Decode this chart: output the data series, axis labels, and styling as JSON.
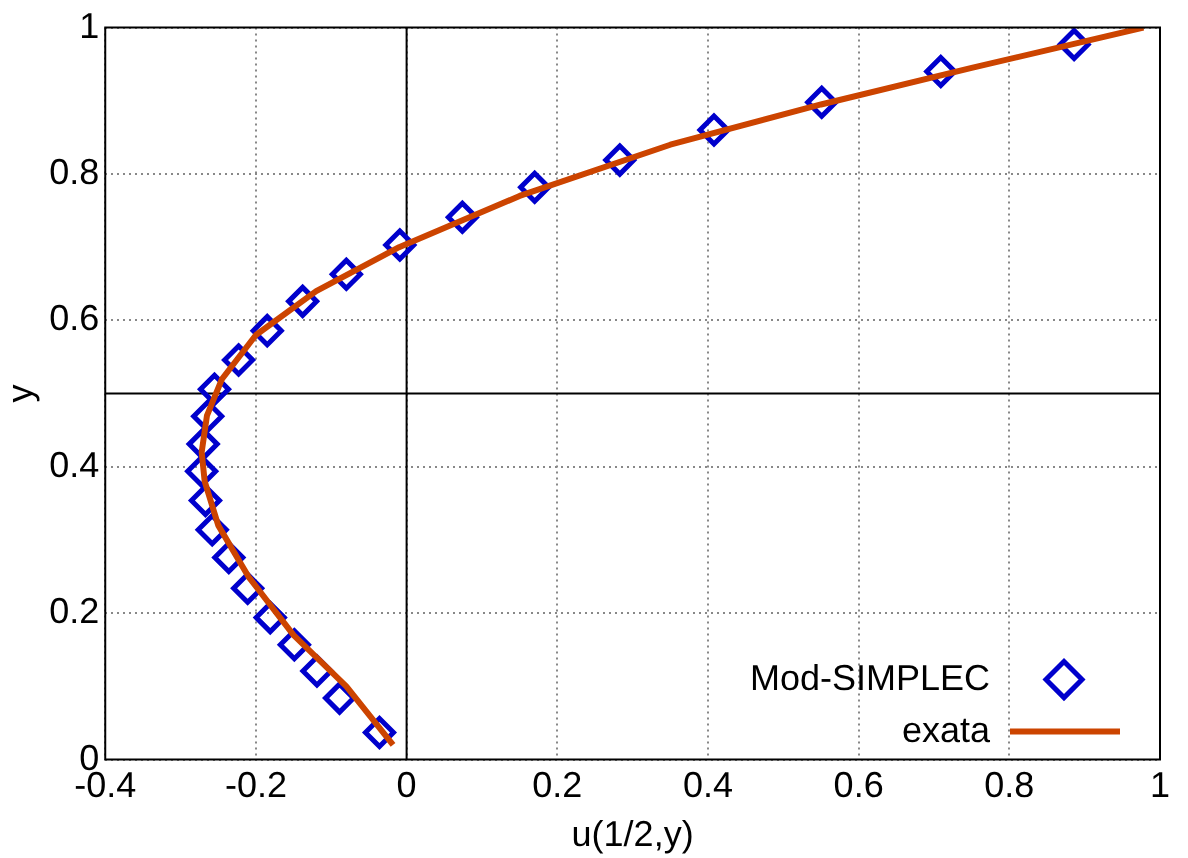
{
  "chart_data": {
    "type": "scatter",
    "xlabel": "u(1/2,y)",
    "ylabel": "y",
    "xlim": [
      -0.4,
      1
    ],
    "ylim": [
      0,
      1
    ],
    "xticks": [
      -0.4,
      -0.2,
      0,
      0.2,
      0.4,
      0.6,
      0.8,
      1
    ],
    "yticks": [
      0,
      0.2,
      0.4,
      0.6,
      0.8,
      1
    ],
    "grid": true,
    "legend": "bottom right",
    "marker": "diamond",
    "ref_lines": [
      {
        "axis": "x",
        "value": 0,
        "color": "#000000"
      },
      {
        "axis": "y",
        "value": 0.5,
        "color": "#000000"
      }
    ],
    "series": [
      {
        "name": "Mod-SIMPLEC",
        "color": "#0000cc",
        "x": [
          -0.036,
          -0.089,
          -0.119,
          -0.149,
          -0.181,
          -0.211,
          -0.236,
          -0.258,
          -0.267,
          -0.272,
          -0.27,
          -0.264,
          -0.255,
          -0.223,
          -0.185,
          -0.138,
          -0.08,
          -0.009,
          0.074,
          0.17,
          0.283,
          0.408,
          0.551,
          0.709,
          0.886
        ],
        "values": [
          0.037,
          0.084,
          0.121,
          0.157,
          0.194,
          0.234,
          0.276,
          0.314,
          0.354,
          0.394,
          0.431,
          0.469,
          0.506,
          0.546,
          0.586,
          0.626,
          0.663,
          0.703,
          0.741,
          0.782,
          0.819,
          0.86,
          0.898,
          0.94,
          0.977
        ]
      },
      {
        "name": "exata",
        "type": "line",
        "color": "#cc4400",
        "marker": "none",
        "line_style": "solid",
        "x": [
          -0.018,
          -0.08,
          -0.15,
          -0.21,
          -0.25,
          -0.268,
          -0.272,
          -0.265,
          -0.245,
          -0.2,
          -0.12,
          -0.01,
          0.15,
          0.35,
          0.55,
          0.75,
          0.978
        ],
        "values": [
          0.02,
          0.1,
          0.17,
          0.25,
          0.32,
          0.38,
          0.42,
          0.47,
          0.52,
          0.58,
          0.64,
          0.7,
          0.77,
          0.84,
          0.895,
          0.945,
          1
        ]
      }
    ]
  }
}
